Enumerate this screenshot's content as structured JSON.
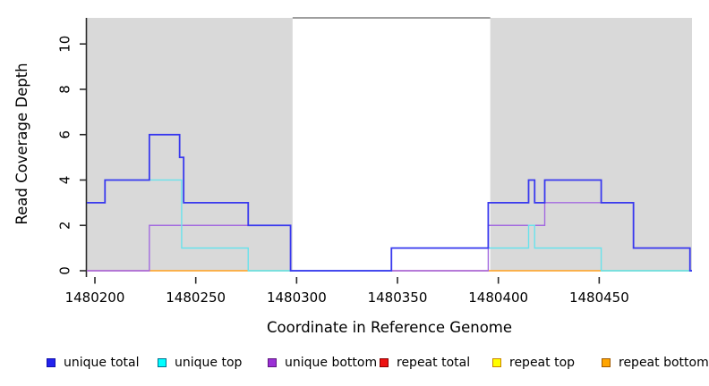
{
  "ui": {
    "xlabel": "Coordinate in Reference Genome",
    "ylabel": "Read Coverage Depth"
  },
  "chart_data": {
    "type": "line",
    "subtype": "step-coverage",
    "title": "",
    "xlabel": "Coordinate in Reference Genome",
    "ylabel": "Read Coverage Depth",
    "xlim": [
      1480196,
      1480496
    ],
    "ylim": [
      0,
      11.15
    ],
    "x_ticks": [
      1480200,
      1480250,
      1480300,
      1480350,
      1480400,
      1480450
    ],
    "y_ticks": [
      0,
      2,
      4,
      6,
      8,
      10
    ],
    "grid": false,
    "background_color": "#ffffff",
    "shaded_region_color": "#D9D9D9",
    "shaded_regions": [
      {
        "from": 1480196,
        "to": 1480298
      },
      {
        "from": 1480396,
        "to": 1480496
      }
    ],
    "gap_top_line": {
      "from": 1480298,
      "to": 1480396,
      "color": "#7F7F7F"
    },
    "step_series": [
      {
        "name": "unique bottom",
        "color": "#A36AE0",
        "width": 1.4,
        "points": [
          [
            1480196,
            0
          ],
          [
            1480227,
            2
          ],
          [
            1480297,
            0
          ],
          [
            1480395,
            2
          ],
          [
            1480423,
            3
          ],
          [
            1480467,
            1
          ],
          [
            1480495,
            0
          ],
          [
            1480496,
            0
          ]
        ]
      },
      {
        "name": "unique top",
        "color": "#69E2EC",
        "width": 1.4,
        "points": [
          [
            1480196,
            3
          ],
          [
            1480205,
            4
          ],
          [
            1480243,
            1
          ],
          [
            1480276,
            0
          ],
          [
            1480347,
            1
          ],
          [
            1480415,
            2
          ],
          [
            1480418,
            1
          ],
          [
            1480451,
            0
          ],
          [
            1480496,
            0
          ]
        ]
      },
      {
        "name": "unique total",
        "color": "#3939EE",
        "width": 1.8,
        "points": [
          [
            1480196,
            3
          ],
          [
            1480205,
            4
          ],
          [
            1480227,
            6
          ],
          [
            1480242,
            5
          ],
          [
            1480244,
            3
          ],
          [
            1480276,
            2
          ],
          [
            1480297,
            0
          ],
          [
            1480347,
            1
          ],
          [
            1480395,
            3
          ],
          [
            1480415,
            4
          ],
          [
            1480418,
            3
          ],
          [
            1480423,
            4
          ],
          [
            1480451,
            3
          ],
          [
            1480467,
            1
          ],
          [
            1480495,
            0
          ],
          [
            1480496,
            0
          ]
        ]
      }
    ],
    "baseline_segments": [
      {
        "name": "repeat total",
        "color": "#E05A80",
        "from": 1480196,
        "to": 1480227,
        "depth": 0
      },
      {
        "name": "repeat bottom",
        "color": "#FFA01E",
        "from": 1480227,
        "to": 1480276,
        "depth": 0
      },
      {
        "name": "repeat top",
        "color": "#7CC87C",
        "from": 1480276,
        "to": 1480298,
        "depth": 0
      },
      {
        "name": "repeat total",
        "color": "#E05A80",
        "from": 1480347,
        "to": 1480395,
        "depth": 0
      },
      {
        "name": "repeat bottom",
        "color": "#FFA01E",
        "from": 1480395,
        "to": 1480451,
        "depth": 0
      },
      {
        "name": "repeat top",
        "color": "#7CC87C",
        "from": 1480451,
        "to": 1480496,
        "depth": 0
      }
    ],
    "legend_position": "bottom",
    "legend": [
      {
        "label": "unique total",
        "fill": "#2222EE",
        "border": "#1111AA"
      },
      {
        "label": "unique top",
        "fill": "#00FFFF",
        "border": "#007090"
      },
      {
        "label": "unique bottom",
        "fill": "#9B30D6",
        "border": "#5E1680"
      },
      {
        "label": "repeat total",
        "fill": "#EE1111",
        "border": "#8B0000"
      },
      {
        "label": "repeat top",
        "fill": "#FFFF00",
        "border": "#C88400"
      },
      {
        "label": "repeat bottom",
        "fill": "#FFA500",
        "border": "#A05A00"
      }
    ]
  }
}
